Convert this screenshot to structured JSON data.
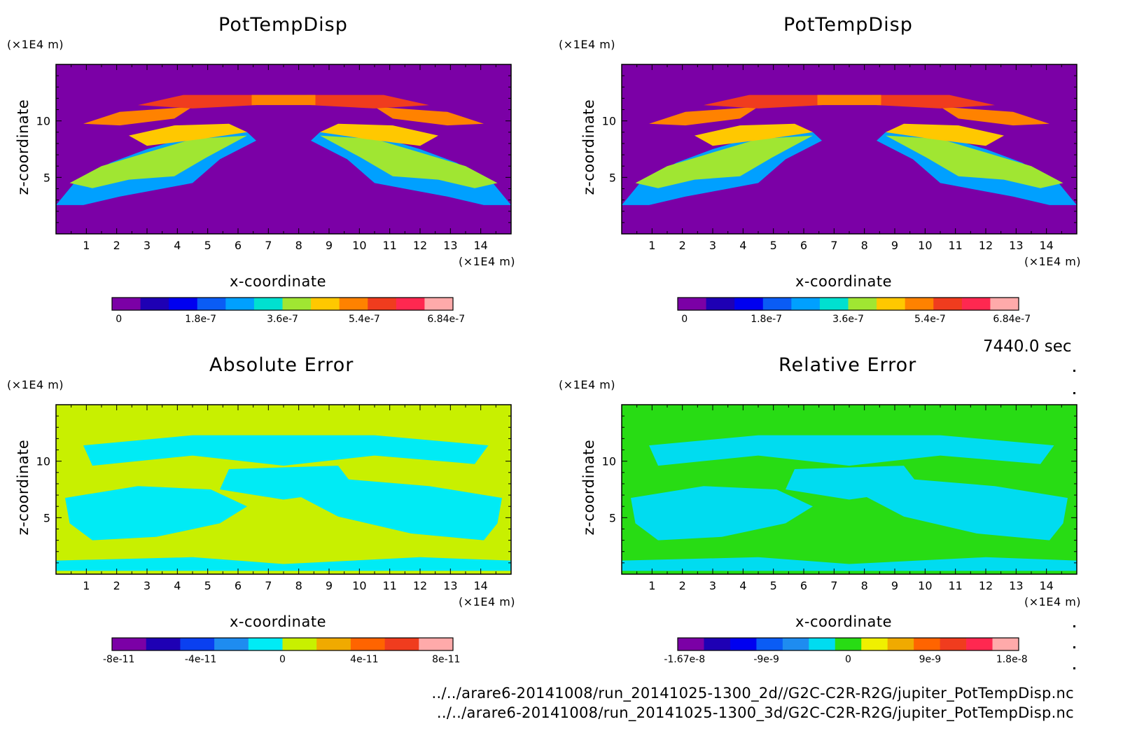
{
  "timestamp": "7440.0 sec",
  "files": [
    "../../arare6-20141008/run_20141025-1300_2d//G2C-C2R-R2G/jupiter_PotTempDisp.nc",
    "../../arare6-20141008/run_20141025-1300_3d/G2C-C2R-R2G/jupiter_PotTempDisp.nc"
  ],
  "chart_data": [
    {
      "type": "heatmap",
      "title": "PotTempDisp",
      "xlabel": "x-coordinate",
      "ylabel": "z-coordinate",
      "x_unit": "(×1E4 m)",
      "y_unit": "(×1E4 m)",
      "xlim": [
        0,
        15
      ],
      "ylim": [
        0,
        15
      ],
      "x_ticks": [
        "1",
        "2",
        "3",
        "4",
        "5",
        "6",
        "7",
        "8",
        "9",
        "10",
        "11",
        "12",
        "13",
        "14"
      ],
      "y_ticks": [
        "5",
        "10"
      ],
      "colorbar": {
        "colors": [
          "#7b00a6",
          "#1e00b4",
          "#0000f0",
          "#0a5cf5",
          "#00a0ff",
          "#00e0d0",
          "#a0e632",
          "#ffc800",
          "#ff8200",
          "#f03c1e",
          "#ff2850",
          "#ffaaaa"
        ],
        "labels": [
          "0",
          "1.8e-7",
          "3.6e-7",
          "5.4e-7",
          "6.84e-7"
        ]
      }
    },
    {
      "type": "heatmap",
      "title": "PotTempDisp",
      "xlabel": "x-coordinate",
      "ylabel": "z-coordinate",
      "x_unit": "(×1E4 m)",
      "y_unit": "(×1E4 m)",
      "xlim": [
        0,
        15
      ],
      "ylim": [
        0,
        15
      ],
      "x_ticks": [
        "1",
        "2",
        "3",
        "4",
        "5",
        "6",
        "7",
        "8",
        "9",
        "10",
        "11",
        "12",
        "13",
        "14"
      ],
      "y_ticks": [
        "5",
        "10"
      ],
      "colorbar": {
        "colors": [
          "#7b00a6",
          "#1e00b4",
          "#0000f0",
          "#0a5cf5",
          "#00a0ff",
          "#00e0d0",
          "#a0e632",
          "#ffc800",
          "#ff8200",
          "#f03c1e",
          "#ff2850",
          "#ffaaaa"
        ],
        "labels": [
          "0",
          "1.8e-7",
          "3.6e-7",
          "5.4e-7",
          "6.84e-7"
        ]
      }
    },
    {
      "type": "heatmap",
      "title": "Absolute Error",
      "xlabel": "x-coordinate",
      "ylabel": "z-coordinate",
      "x_unit": "(×1E4 m)",
      "y_unit": "(×1E4 m)",
      "xlim": [
        0,
        15
      ],
      "ylim": [
        0,
        15
      ],
      "x_ticks": [
        "1",
        "2",
        "3",
        "4",
        "5",
        "6",
        "7",
        "8",
        "9",
        "10",
        "11",
        "12",
        "13",
        "14"
      ],
      "y_ticks": [
        "5",
        "10"
      ],
      "colorbar": {
        "colors": [
          "#7b00a6",
          "#1e00b4",
          "#0a40f0",
          "#1e8cf0",
          "#00ebf5",
          "#c8f000",
          "#f0aa00",
          "#ff6400",
          "#f03c1e",
          "#ffaaaa"
        ],
        "labels": [
          "-8e-11",
          "-4e-11",
          "0",
          "4e-11",
          "8e-11"
        ]
      }
    },
    {
      "type": "heatmap",
      "title": "Relative Error",
      "xlabel": "x-coordinate",
      "ylabel": "z-coordinate",
      "x_unit": "(×1E4 m)",
      "y_unit": "(×1E4 m)",
      "xlim": [
        0,
        15
      ],
      "ylim": [
        0,
        15
      ],
      "x_ticks": [
        "1",
        "2",
        "3",
        "4",
        "5",
        "6",
        "7",
        "8",
        "9",
        "10",
        "11",
        "12",
        "13",
        "14"
      ],
      "y_ticks": [
        "5",
        "10"
      ],
      "colorbar": {
        "colors": [
          "#7b00a6",
          "#1e00b4",
          "#0000f0",
          "#0a5cf5",
          "#1e8cf0",
          "#00dcf0",
          "#28dc14",
          "#f0f000",
          "#f0aa00",
          "#ff6400",
          "#f03c1e",
          "#ff2850",
          "#ffaaaa"
        ],
        "labels": [
          "-1.67e-8",
          "-9e-9",
          "0",
          "9e-9",
          "1.8e-8"
        ]
      }
    }
  ]
}
